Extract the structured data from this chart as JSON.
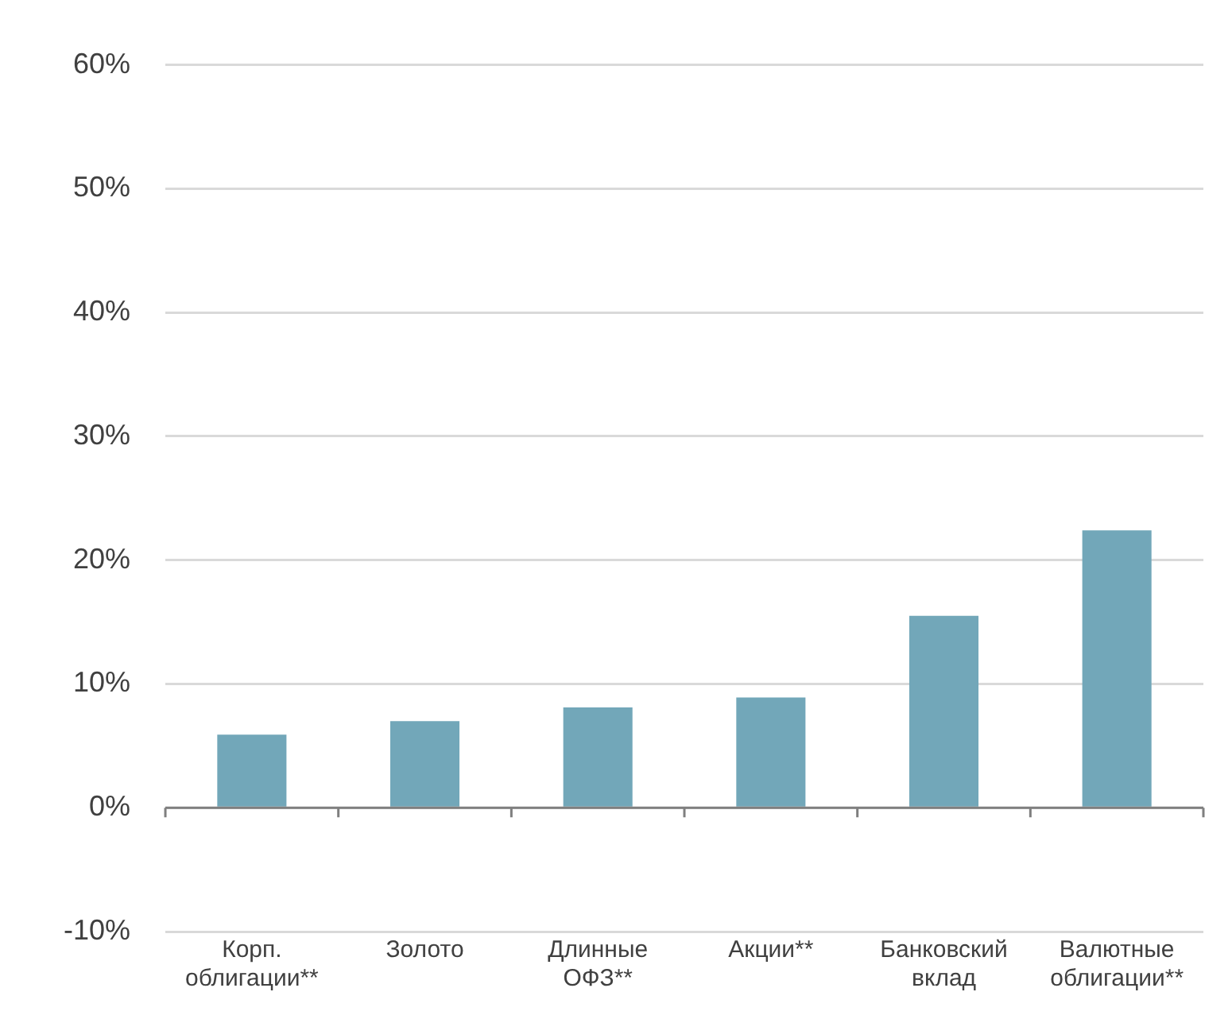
{
  "chart_data": {
    "type": "bar",
    "categories": [
      "Корп. облигации**",
      "Золото",
      "Длинные ОФЗ**",
      "Акции**",
      "Банковский вклад",
      "Валютные облигации**"
    ],
    "values": [
      5.9,
      7.0,
      8.1,
      8.9,
      15.5,
      22.4
    ],
    "color": "#72a7b9",
    "ylim": [
      -10,
      60
    ],
    "yticks": [
      {
        "value": -10,
        "label": "-10%"
      },
      {
        "value": 0,
        "label": "0%"
      },
      {
        "value": 10,
        "label": "10%"
      },
      {
        "value": 20,
        "label": "20%"
      },
      {
        "value": 30,
        "label": "30%"
      },
      {
        "value": 40,
        "label": "40%"
      },
      {
        "value": 50,
        "label": "50%"
      },
      {
        "value": 60,
        "label": "60%"
      }
    ],
    "grid": "y",
    "legend": false
  }
}
